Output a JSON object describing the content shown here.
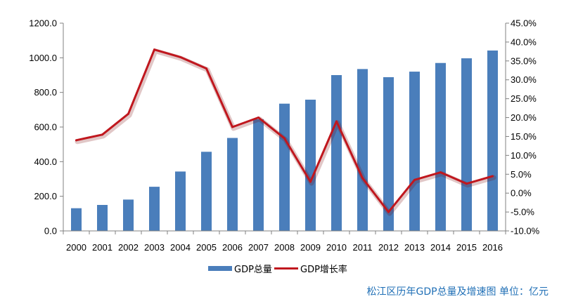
{
  "chart_data": {
    "type": "bar+line",
    "categories": [
      "2000",
      "2001",
      "2002",
      "2003",
      "2004",
      "2005",
      "2006",
      "2007",
      "2008",
      "2009",
      "2010",
      "2011",
      "2012",
      "2013",
      "2014",
      "2015",
      "2016"
    ],
    "series": [
      {
        "name": "GDP总量",
        "type": "bar",
        "axis": "left",
        "color": "#4a7ebb",
        "values": [
          131,
          150,
          181,
          255,
          343,
          457,
          537,
          645,
          735,
          758,
          900,
          935,
          888,
          920,
          970,
          997,
          1042
        ]
      },
      {
        "name": "GDP增长率",
        "type": "line",
        "axis": "right",
        "color": "#c0171e",
        "unit": "%",
        "values": [
          14.0,
          15.5,
          21.0,
          38.0,
          36.0,
          33.0,
          17.5,
          20.0,
          14.5,
          3.0,
          19.0,
          4.0,
          -5.0,
          3.5,
          5.5,
          2.5,
          4.5
        ]
      }
    ],
    "y_left": {
      "min": 0,
      "max": 1200,
      "step": 200,
      "ticks": [
        "0.0",
        "200.0",
        "400.0",
        "600.0",
        "800.0",
        "1000.0",
        "1200.0"
      ]
    },
    "y_right": {
      "min": -10,
      "max": 45,
      "step": 5,
      "ticks": [
        "-10.0%",
        "-5.0%",
        "0.0%",
        "5.0%",
        "10.0%",
        "15.0%",
        "20.0%",
        "25.0%",
        "30.0%",
        "35.0%",
        "40.0%",
        "45.0%"
      ]
    },
    "grid": false,
    "legend_position": "bottom",
    "caption": "松江区历年GDP总量及增速图  单位：亿元"
  }
}
